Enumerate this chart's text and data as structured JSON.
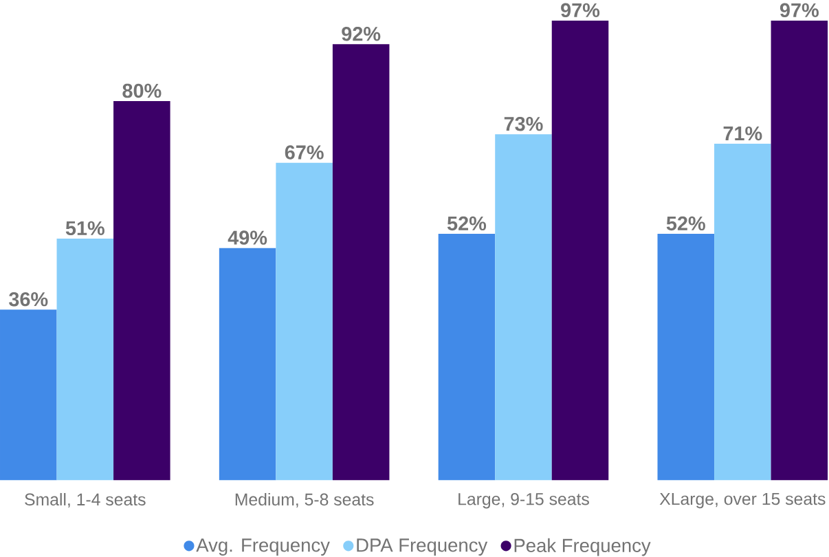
{
  "chart_data": {
    "type": "bar",
    "categories": [
      "Small, 1-4 seats",
      "Medium, 5-8 seats",
      "Large, 9-15 seats",
      "XLarge, over 15 seats"
    ],
    "series": [
      {
        "name": "Avg. Frequency",
        "color": "#418ae8",
        "values": [
          36,
          49,
          52,
          52
        ],
        "value_labels": [
          "36%",
          "49%",
          "52%",
          "52%"
        ]
      },
      {
        "name": "DPA Frequency",
        "color": "#87cefa",
        "values": [
          51,
          67,
          73,
          71
        ],
        "value_labels": [
          "51%",
          "67%",
          "73%",
          "71%"
        ]
      },
      {
        "name": "Peak Frequency",
        "color": "#3c0068",
        "values": [
          80,
          92,
          97,
          97
        ],
        "value_labels": [
          "80%",
          "92%",
          "97%",
          "97%"
        ]
      }
    ],
    "legend": "bottom"
  }
}
